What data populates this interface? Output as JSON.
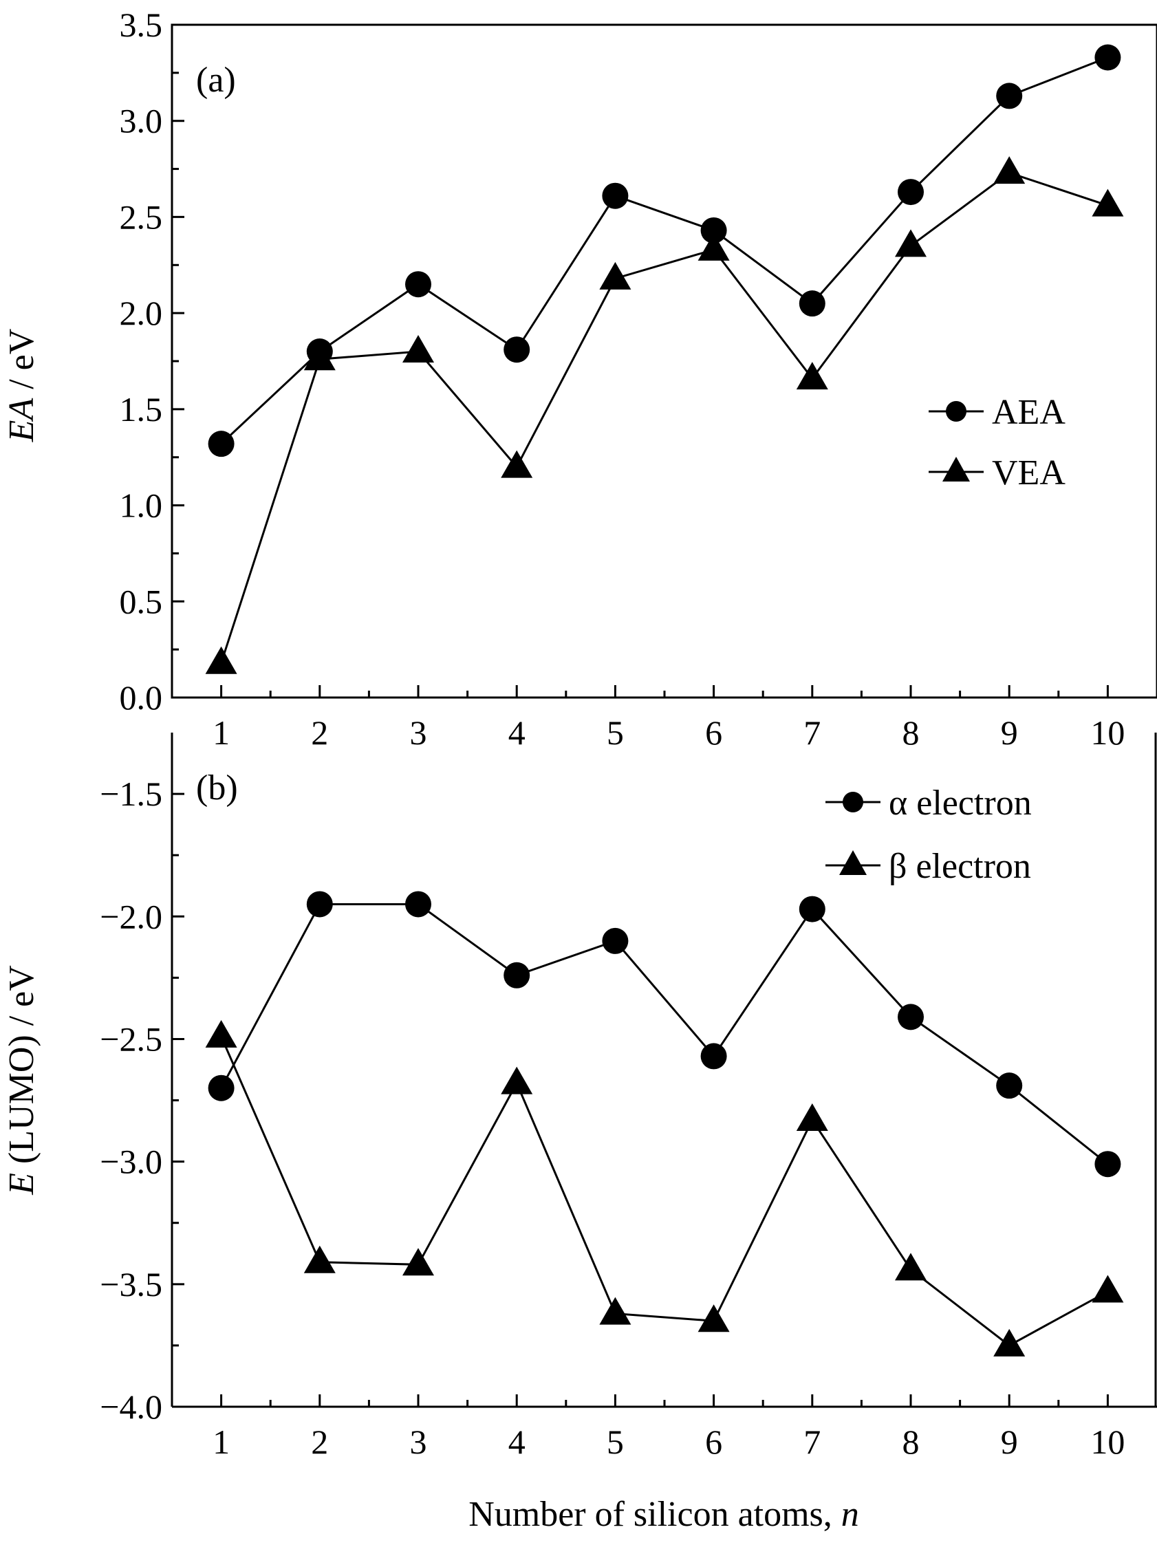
{
  "chart_data": [
    {
      "type": "line",
      "panel_label": "(a)",
      "xlabel": "",
      "ylabel_italic": "EA",
      "ylabel_rest": " / eV",
      "x": [
        1,
        2,
        3,
        4,
        5,
        6,
        7,
        8,
        9,
        10
      ],
      "x_tick_labels": [
        "1",
        "2",
        "3",
        "4",
        "5",
        "6",
        "7",
        "8",
        "9",
        "10"
      ],
      "y_ticks": [
        0.0,
        0.5,
        1.0,
        1.5,
        2.0,
        2.5,
        3.0,
        3.5
      ],
      "y_tick_labels": [
        "0.0",
        "0.5",
        "1.0",
        "1.5",
        "2.0",
        "2.5",
        "3.0",
        "3.5"
      ],
      "xlim": [
        0.5,
        10.5
      ],
      "ylim": [
        0.0,
        3.5
      ],
      "legend_position": "right",
      "series": [
        {
          "name": "AEA",
          "marker": "circle",
          "values": [
            1.32,
            1.8,
            2.15,
            1.81,
            2.61,
            2.43,
            2.05,
            2.63,
            3.13,
            3.33
          ]
        },
        {
          "name": "VEA",
          "marker": "triangle",
          "values": [
            0.18,
            1.76,
            1.8,
            1.2,
            2.18,
            2.33,
            1.66,
            2.35,
            2.73,
            2.56
          ]
        }
      ]
    },
    {
      "type": "line",
      "panel_label": "(b)",
      "xlabel_text": "Number of silicon atoms, ",
      "xlabel_italic": "n",
      "ylabel_italic": "E",
      "ylabel_rest": " (LUMO) / eV",
      "x": [
        1,
        2,
        3,
        4,
        5,
        6,
        7,
        8,
        9,
        10
      ],
      "x_tick_labels": [
        "1",
        "2",
        "3",
        "4",
        "5",
        "6",
        "7",
        "8",
        "9",
        "10"
      ],
      "y_ticks": [
        -4.0,
        -3.5,
        -3.0,
        -2.5,
        -2.0,
        -1.5
      ],
      "y_tick_labels": [
        "−4.0",
        "−3.5",
        "−3.0",
        "−2.5",
        "−2.0",
        "−1.5"
      ],
      "xlim": [
        0.5,
        10.5
      ],
      "ylim": [
        -4.0,
        -1.25
      ],
      "legend_position": "top-right",
      "series": [
        {
          "name": "α electron",
          "marker": "circle",
          "values": [
            -2.7,
            -1.95,
            -1.95,
            -2.24,
            -2.1,
            -2.57,
            -1.97,
            -2.41,
            -2.69,
            -3.01
          ]
        },
        {
          "name": "β electron",
          "marker": "triangle",
          "values": [
            -2.49,
            -3.41,
            -3.42,
            -2.68,
            -3.62,
            -3.65,
            -2.83,
            -3.44,
            -3.75,
            -3.53
          ]
        }
      ]
    }
  ]
}
